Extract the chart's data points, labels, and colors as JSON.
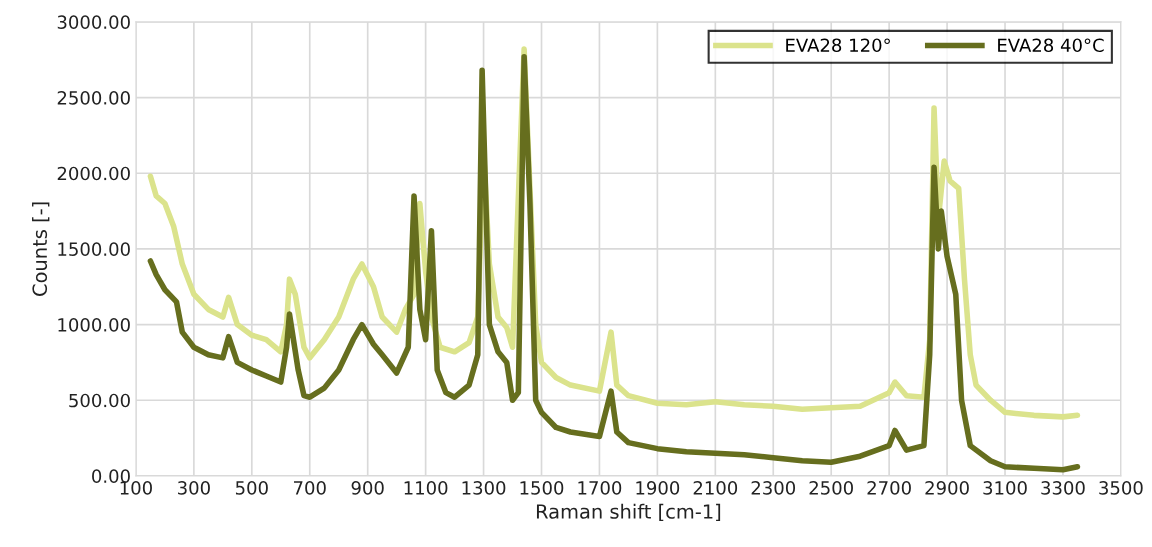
{
  "chart_data": {
    "type": "line",
    "xlabel": "Raman shift [cm-1]",
    "ylabel": "Counts [-]",
    "xlim": [
      100,
      3500
    ],
    "xticks": [
      100,
      300,
      500,
      700,
      900,
      1100,
      1300,
      1500,
      1700,
      1900,
      2100,
      2300,
      2500,
      2700,
      2900,
      3100,
      3300,
      3500
    ],
    "ylim": [
      0,
      3000
    ],
    "yticks": [
      {
        "value": 0,
        "label": "0.00"
      },
      {
        "value": 500,
        "label": "500.00"
      },
      {
        "value": 1000,
        "label": "1000.00"
      },
      {
        "value": 1500,
        "label": "1500.00"
      },
      {
        "value": 2000,
        "label": "2000.00"
      },
      {
        "value": 2500,
        "label": "2500.00"
      },
      {
        "value": 3000,
        "label": "3000.00"
      }
    ],
    "grid": true,
    "legend": "top right",
    "marker": "none",
    "line_style": "solid",
    "series": [
      {
        "name": "EVA28 120°",
        "color": "#dbe38c",
        "x": [
          150,
          170,
          200,
          230,
          260,
          300,
          350,
          400,
          420,
          450,
          500,
          550,
          600,
          620,
          630,
          650,
          680,
          700,
          750,
          800,
          850,
          880,
          920,
          950,
          1000,
          1030,
          1060,
          1080,
          1100,
          1120,
          1150,
          1200,
          1250,
          1280,
          1300,
          1320,
          1350,
          1380,
          1400,
          1440,
          1460,
          1480,
          1500,
          1550,
          1600,
          1700,
          1740,
          1760,
          1800,
          1900,
          2000,
          2100,
          2200,
          2300,
          2400,
          2500,
          2600,
          2700,
          2720,
          2760,
          2820,
          2840,
          2855,
          2870,
          2890,
          2910,
          2940,
          2960,
          2980,
          3000,
          3050,
          3100,
          3200,
          3300,
          3350
        ],
        "values": [
          1980,
          1850,
          1800,
          1650,
          1400,
          1200,
          1100,
          1050,
          1180,
          1000,
          930,
          900,
          820,
          1000,
          1300,
          1200,
          850,
          780,
          900,
          1050,
          1300,
          1400,
          1250,
          1050,
          950,
          1100,
          1200,
          1800,
          1350,
          1050,
          850,
          820,
          880,
          1050,
          2150,
          1400,
          1050,
          980,
          850,
          2820,
          1900,
          1000,
          750,
          650,
          600,
          560,
          950,
          600,
          530,
          480,
          470,
          490,
          470,
          460,
          440,
          450,
          460,
          550,
          620,
          530,
          520,
          900,
          2430,
          1700,
          2080,
          1950,
          1900,
          1300,
          800,
          600,
          500,
          420,
          400,
          390,
          400
        ]
      },
      {
        "name": "EVA28 40°C",
        "color": "#666e1e",
        "x": [
          150,
          170,
          200,
          240,
          260,
          300,
          350,
          400,
          420,
          450,
          500,
          550,
          600,
          620,
          630,
          660,
          680,
          700,
          750,
          800,
          850,
          880,
          920,
          950,
          1000,
          1040,
          1060,
          1080,
          1100,
          1120,
          1140,
          1170,
          1200,
          1250,
          1280,
          1295,
          1320,
          1350,
          1380,
          1400,
          1420,
          1440,
          1460,
          1480,
          1500,
          1550,
          1600,
          1700,
          1740,
          1760,
          1800,
          1900,
          2000,
          2100,
          2200,
          2300,
          2400,
          2500,
          2600,
          2700,
          2720,
          2760,
          2820,
          2840,
          2855,
          2870,
          2880,
          2900,
          2930,
          2950,
          2980,
          3050,
          3100,
          3200,
          3300,
          3350
        ],
        "values": [
          1420,
          1330,
          1230,
          1150,
          950,
          850,
          800,
          780,
          920,
          750,
          700,
          660,
          620,
          850,
          1070,
          700,
          530,
          520,
          580,
          700,
          900,
          1000,
          870,
          800,
          680,
          850,
          1850,
          1100,
          900,
          1620,
          700,
          550,
          520,
          600,
          800,
          2680,
          1000,
          820,
          750,
          500,
          550,
          2770,
          1800,
          500,
          420,
          320,
          290,
          260,
          560,
          290,
          220,
          180,
          160,
          150,
          140,
          120,
          100,
          90,
          130,
          200,
          300,
          170,
          200,
          800,
          2040,
          1500,
          1750,
          1450,
          1200,
          500,
          200,
          100,
          60,
          50,
          40,
          60
        ]
      }
    ]
  }
}
